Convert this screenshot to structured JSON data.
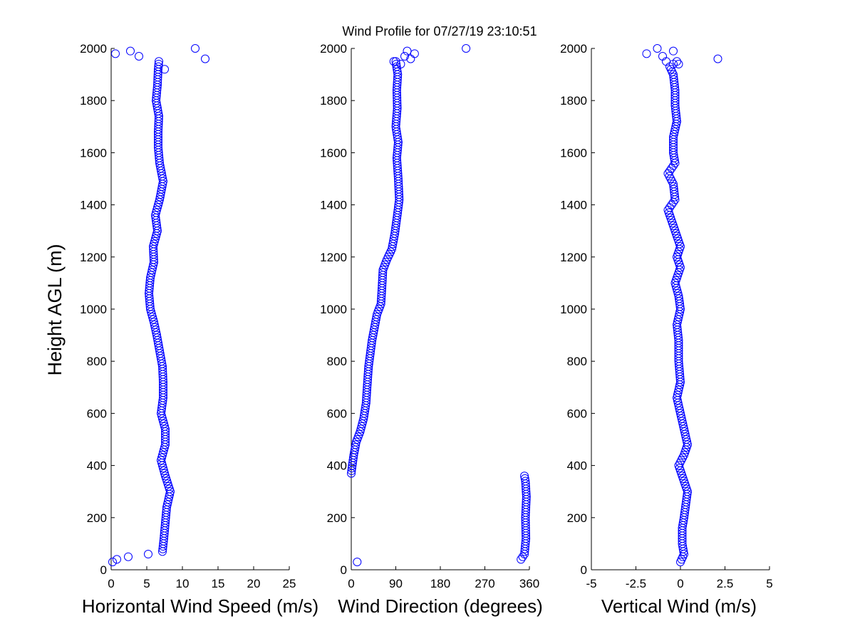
{
  "figure": {
    "title": "Wind Profile for  07/27/19 23:10:51",
    "ylabel": "Height AGL (m)"
  },
  "colors": {
    "marker": "#0000ff",
    "axis": "#000000",
    "background": "#ffffff"
  },
  "chart_data": [
    {
      "type": "scatter",
      "xlabel": "Horizontal Wind Speed (m/s)",
      "ylabel": "Height AGL (m)",
      "xlim": [
        0,
        25
      ],
      "ylim": [
        0,
        2000
      ],
      "xticks": [
        0,
        5,
        10,
        15,
        20,
        25
      ],
      "xtick_labels": [
        "0",
        "5",
        "10",
        "15",
        "20",
        "25"
      ],
      "yticks": [
        0,
        200,
        400,
        600,
        800,
        1000,
        1200,
        1400,
        1600,
        1800,
        2000
      ],
      "ytick_labels": [
        "0",
        "200",
        "400",
        "600",
        "800",
        "1000",
        "1200",
        "1400",
        "1600",
        "1800",
        "2000"
      ],
      "marker": "open-circle",
      "anchors": [
        [
          7.2,
          70
        ],
        [
          7.4,
          120
        ],
        [
          7.6,
          180
        ],
        [
          7.8,
          240
        ],
        [
          8.3,
          300
        ],
        [
          7.6,
          360
        ],
        [
          7.0,
          420
        ],
        [
          7.6,
          480
        ],
        [
          7.6,
          540
        ],
        [
          7.0,
          600
        ],
        [
          7.3,
          660
        ],
        [
          7.3,
          720
        ],
        [
          7.2,
          780
        ],
        [
          6.8,
          840
        ],
        [
          6.4,
          900
        ],
        [
          6.0,
          950
        ],
        [
          5.5,
          1000
        ],
        [
          5.3,
          1060
        ],
        [
          5.5,
          1120
        ],
        [
          6.0,
          1180
        ],
        [
          5.9,
          1240
        ],
        [
          6.5,
          1300
        ],
        [
          6.2,
          1360
        ],
        [
          6.8,
          1420
        ],
        [
          7.3,
          1490
        ],
        [
          6.8,
          1560
        ],
        [
          6.6,
          1620
        ],
        [
          6.6,
          1680
        ],
        [
          6.7,
          1740
        ],
        [
          6.3,
          1800
        ],
        [
          6.5,
          1860
        ],
        [
          6.6,
          1920
        ],
        [
          6.7,
          1950
        ]
      ],
      "points": [
        [
          0.2,
          30
        ],
        [
          0.8,
          40
        ],
        [
          2.4,
          50
        ],
        [
          5.2,
          60
        ],
        [
          2.7,
          1990
        ],
        [
          0.6,
          1980
        ],
        [
          3.9,
          1970
        ],
        [
          11.8,
          2000
        ],
        [
          13.2,
          1960
        ],
        [
          7.5,
          1920
        ]
      ]
    },
    {
      "type": "scatter",
      "xlabel": "Wind Direction (degrees)",
      "ylabel": "",
      "xlim": [
        0,
        360
      ],
      "ylim": [
        0,
        2000
      ],
      "xticks": [
        0,
        90,
        180,
        270,
        360
      ],
      "xtick_labels": [
        "0",
        "90",
        "180",
        "270",
        "360"
      ],
      "yticks": [
        0,
        200,
        400,
        600,
        800,
        1000,
        1200,
        1400,
        1600,
        1800,
        2000
      ],
      "ytick_labels": [
        "0",
        "200",
        "400",
        "600",
        "800",
        "1000",
        "1200",
        "1400",
        "1600",
        "1800",
        "2000"
      ],
      "marker": "open-circle",
      "anchors": [
        [
          0,
          370
        ],
        [
          2,
          400
        ],
        [
          5,
          440
        ],
        [
          10,
          490
        ],
        [
          18,
          530
        ],
        [
          25,
          580
        ],
        [
          30,
          640
        ],
        [
          32,
          700
        ],
        [
          35,
          780
        ],
        [
          42,
          880
        ],
        [
          52,
          980
        ],
        [
          60,
          1020
        ],
        [
          62,
          1080
        ],
        [
          64,
          1150
        ],
        [
          72,
          1190
        ],
        [
          82,
          1230
        ],
        [
          88,
          1290
        ],
        [
          93,
          1360
        ],
        [
          97,
          1420
        ],
        [
          95,
          1500
        ],
        [
          92,
          1580
        ],
        [
          95,
          1640
        ],
        [
          90,
          1700
        ],
        [
          93,
          1770
        ],
        [
          92,
          1840
        ],
        [
          94,
          1900
        ],
        [
          90,
          1950
        ]
      ],
      "anchors2": [
        [
          343,
          40
        ],
        [
          350,
          60
        ],
        [
          353,
          120
        ],
        [
          352,
          200
        ],
        [
          354,
          280
        ],
        [
          352,
          340
        ],
        [
          350,
          360
        ]
      ],
      "points": [
        [
          12,
          30
        ],
        [
          232,
          2000
        ],
        [
          113,
          1990
        ],
        [
          128,
          1980
        ],
        [
          108,
          1970
        ],
        [
          120,
          1960
        ],
        [
          100,
          1940
        ],
        [
          86,
          1950
        ]
      ]
    },
    {
      "type": "scatter",
      "xlabel": "Vertical Wind (m/s)",
      "ylabel": "",
      "xlim": [
        -5,
        5
      ],
      "ylim": [
        0,
        2000
      ],
      "xticks": [
        -5,
        -2.5,
        0,
        2.5,
        5
      ],
      "xtick_labels": [
        "-5",
        "-2.5",
        "0",
        "2.5",
        "5"
      ],
      "yticks": [
        0,
        200,
        400,
        600,
        800,
        1000,
        1200,
        1400,
        1600,
        1800,
        2000
      ],
      "ytick_labels": [
        "0",
        "200",
        "400",
        "600",
        "800",
        "1000",
        "1200",
        "1400",
        "1600",
        "1800",
        "2000"
      ],
      "marker": "open-circle",
      "anchors": [
        [
          0.0,
          30
        ],
        [
          0.2,
          60
        ],
        [
          0.1,
          100
        ],
        [
          0.1,
          160
        ],
        [
          0.2,
          200
        ],
        [
          0.3,
          250
        ],
        [
          0.4,
          300
        ],
        [
          0.1,
          360
        ],
        [
          -0.1,
          400
        ],
        [
          0.2,
          440
        ],
        [
          0.4,
          480
        ],
        [
          0.2,
          540
        ],
        [
          0.0,
          600
        ],
        [
          -0.2,
          660
        ],
        [
          0.0,
          720
        ],
        [
          -0.1,
          800
        ],
        [
          -0.1,
          880
        ],
        [
          -0.2,
          940
        ],
        [
          0.0,
          1000
        ],
        [
          -0.1,
          1050
        ],
        [
          -0.3,
          1100
        ],
        [
          0.0,
          1160
        ],
        [
          -0.2,
          1200
        ],
        [
          0.0,
          1240
        ],
        [
          -0.3,
          1300
        ],
        [
          -0.5,
          1340
        ],
        [
          -0.7,
          1380
        ],
        [
          -0.3,
          1420
        ],
        [
          -0.4,
          1480
        ],
        [
          -0.7,
          1520
        ],
        [
          -0.3,
          1560
        ],
        [
          -0.4,
          1600
        ],
        [
          -0.4,
          1660
        ],
        [
          -0.2,
          1720
        ],
        [
          -0.3,
          1780
        ],
        [
          -0.3,
          1840
        ],
        [
          -0.4,
          1900
        ],
        [
          -0.6,
          1930
        ],
        [
          -0.2,
          1950
        ]
      ],
      "points": [
        [
          -1.9,
          1980
        ],
        [
          -1.3,
          2000
        ],
        [
          -1.0,
          1970
        ],
        [
          -0.4,
          1990
        ],
        [
          -0.8,
          1950
        ],
        [
          2.1,
          1960
        ],
        [
          -0.1,
          1940
        ]
      ]
    }
  ]
}
